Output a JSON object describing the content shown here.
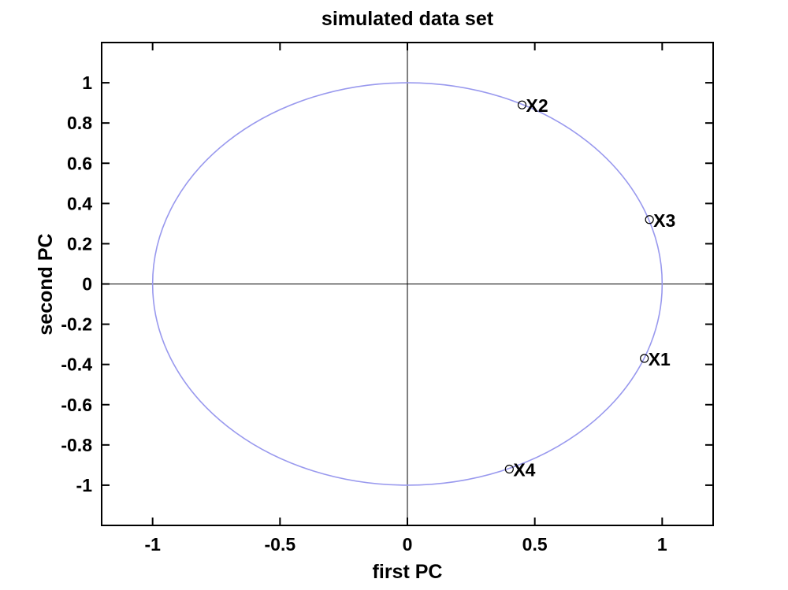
{
  "chart_data": {
    "type": "scatter",
    "title": "simulated data set",
    "xlabel": "first PC",
    "ylabel": "second PC",
    "xlim": [
      -1.2,
      1.2
    ],
    "ylim": [
      -1.2,
      1.2
    ],
    "xticks": [
      -1,
      -0.5,
      0,
      0.5,
      1
    ],
    "xtick_labels": [
      "-1",
      "-0.5",
      "0",
      "0.5",
      "1"
    ],
    "yticks": [
      1,
      0.8,
      0.6,
      0.4,
      0.2,
      0,
      -0.2,
      -0.4,
      -0.6,
      -0.8,
      -1
    ],
    "ytick_labels": [
      "1",
      "0.8",
      "0.6",
      "0.4",
      "0.2",
      "0",
      "-0.2",
      "-0.4",
      "-0.6",
      "-0.8",
      "-1"
    ],
    "grid": false,
    "reference_lines": {
      "x": 0,
      "y": 0
    },
    "unit_circle": {
      "radius": 1,
      "color": "#9999ee"
    },
    "points": [
      {
        "label": "X2",
        "x": 0.45,
        "y": 0.89
      },
      {
        "label": "X3",
        "x": 0.95,
        "y": 0.32
      },
      {
        "label": "X1",
        "x": 0.93,
        "y": -0.37
      },
      {
        "label": "X4",
        "x": 0.4,
        "y": -0.92
      }
    ],
    "marker": "open-circle"
  }
}
